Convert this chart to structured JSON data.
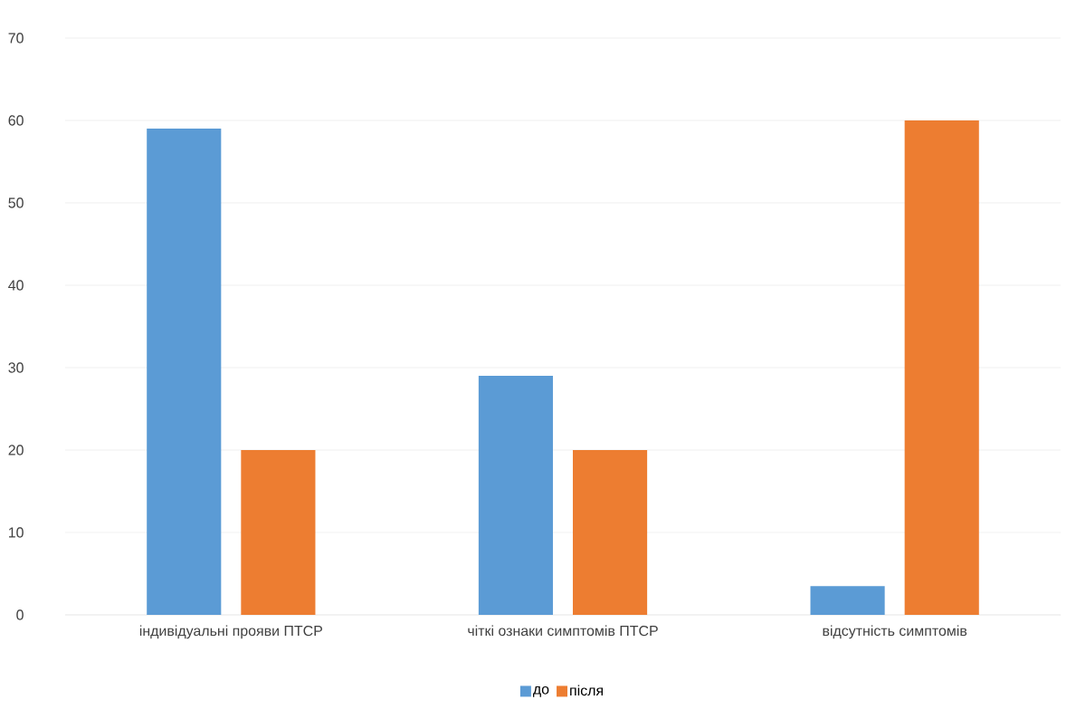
{
  "chart_data": {
    "type": "bar",
    "categories": [
      "індивідуальні прояви ПТСР",
      "чіткі ознаки симптомів ПТСР",
      "відсутність симптомів"
    ],
    "series": [
      {
        "name": "до",
        "color": "#5b9bd5",
        "values": [
          59,
          29,
          3.5
        ]
      },
      {
        "name": "після",
        "color": "#ed7d31",
        "values": [
          20,
          20,
          60
        ]
      }
    ],
    "ylim": [
      0,
      70
    ],
    "yticks": [
      0,
      10,
      20,
      30,
      40,
      50,
      60,
      70
    ],
    "grid": "y",
    "legend": "bottom"
  }
}
